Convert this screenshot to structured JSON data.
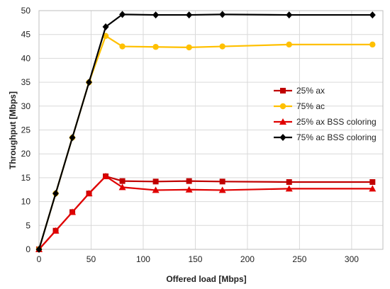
{
  "chart_data": {
    "type": "line",
    "xlabel": "Offered load [Mbps]",
    "ylabel": "Throughput [Mbps]",
    "xlim": [
      0,
      330
    ],
    "ylim": [
      0,
      50
    ],
    "x_ticks": [
      0,
      50,
      100,
      150,
      200,
      250,
      300
    ],
    "y_ticks": [
      0,
      5,
      10,
      15,
      20,
      25,
      30,
      35,
      40,
      45,
      50
    ],
    "grid": "vertical and horizontal",
    "legend_position": "right",
    "series": [
      {
        "name": "25% ax",
        "color": "#c00000",
        "marker": "square",
        "x": [
          0,
          16,
          32,
          48,
          64,
          80,
          112,
          144,
          176,
          240,
          320
        ],
        "y": [
          0,
          3.9,
          7.8,
          11.7,
          15.3,
          14.3,
          14.2,
          14.3,
          14.2,
          14.1,
          14.1
        ]
      },
      {
        "name": "75% ac",
        "color": "#ffc000",
        "marker": "circle",
        "x": [
          0,
          16,
          32,
          48,
          64,
          80,
          112,
          144,
          176,
          240,
          320
        ],
        "y": [
          0,
          11.7,
          23.4,
          35.0,
          44.7,
          42.5,
          42.4,
          42.3,
          42.5,
          42.9,
          42.9
        ]
      },
      {
        "name": "25% ax BSS coloring",
        "color": "#e00000",
        "marker": "triangle",
        "x": [
          0,
          16,
          32,
          48,
          64,
          80,
          112,
          144,
          176,
          240,
          320
        ],
        "y": [
          0,
          3.9,
          7.8,
          11.7,
          15.3,
          13.0,
          12.4,
          12.5,
          12.4,
          12.7,
          12.7
        ]
      },
      {
        "name": "75% ac BSS coloring",
        "color": "#000000",
        "marker": "diamond",
        "x": [
          0,
          16,
          32,
          48,
          64,
          80,
          112,
          144,
          176,
          240,
          320
        ],
        "y": [
          0,
          11.7,
          23.4,
          35.0,
          46.6,
          49.2,
          49.1,
          49.1,
          49.2,
          49.1,
          49.1
        ]
      }
    ]
  }
}
